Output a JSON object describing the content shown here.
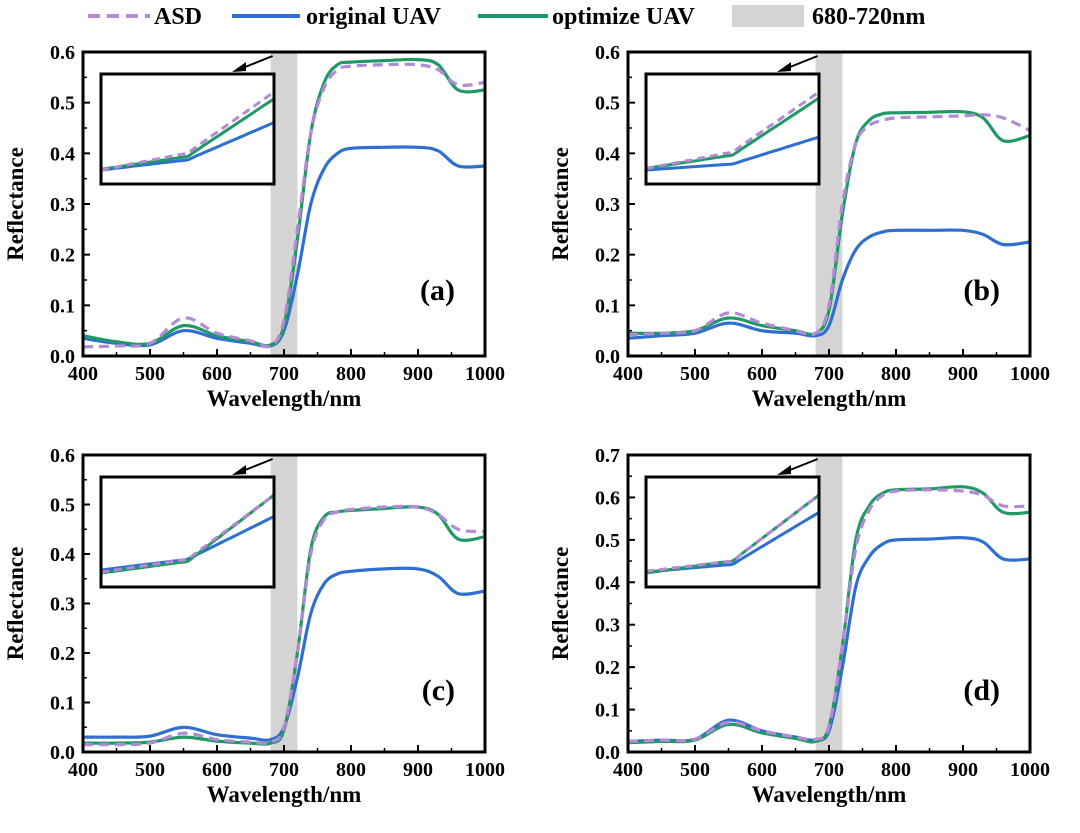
{
  "legend": {
    "asd": "ASD",
    "original": "original UAV",
    "optimize": "optimize UAV",
    "band": "680-720nm"
  },
  "colors": {
    "asd": "#b48ad6",
    "original": "#2e6fd0",
    "optimize": "#1f9a66",
    "band": "#d4d4d4"
  },
  "chart_data": [
    {
      "type": "line",
      "panel_label": "(a)",
      "xlabel": "Wavelength/nm",
      "ylabel": "Reflectance",
      "xlim": [
        400,
        1000
      ],
      "ylim": [
        0,
        0.6
      ],
      "xticks": [
        "400",
        "500",
        "600",
        "700",
        "800",
        "900",
        "1000"
      ],
      "yticks": [
        "0.0",
        "0.1",
        "0.2",
        "0.3",
        "0.4",
        "0.5",
        "0.6"
      ],
      "highlight_band": [
        680,
        720
      ],
      "x": [
        400,
        450,
        500,
        550,
        600,
        650,
        680,
        700,
        720,
        740,
        760,
        780,
        800,
        850,
        900,
        930,
        960,
        1000
      ],
      "series": [
        {
          "name": "ASD",
          "values": [
            0.018,
            0.02,
            0.025,
            0.075,
            0.045,
            0.03,
            0.02,
            0.07,
            0.25,
            0.44,
            0.53,
            0.565,
            0.572,
            0.575,
            0.575,
            0.565,
            0.535,
            0.54
          ]
        },
        {
          "name": "original UAV",
          "values": [
            0.035,
            0.025,
            0.022,
            0.05,
            0.035,
            0.025,
            0.02,
            0.05,
            0.16,
            0.3,
            0.37,
            0.4,
            0.41,
            0.412,
            0.412,
            0.405,
            0.375,
            0.375
          ]
        },
        {
          "name": "optimize UAV",
          "values": [
            0.04,
            0.028,
            0.025,
            0.06,
            0.04,
            0.028,
            0.022,
            0.06,
            0.23,
            0.44,
            0.54,
            0.575,
            0.58,
            0.583,
            0.585,
            0.575,
            0.525,
            0.525
          ]
        }
      ]
    },
    {
      "type": "line",
      "panel_label": "(b)",
      "xlabel": "Wavelength/nm",
      "ylabel": "Reflectance",
      "xlim": [
        400,
        1000
      ],
      "ylim": [
        0,
        0.6
      ],
      "xticks": [
        "400",
        "500",
        "600",
        "700",
        "800",
        "900",
        "1000"
      ],
      "yticks": [
        "0.0",
        "0.1",
        "0.2",
        "0.3",
        "0.4",
        "0.5",
        "0.6"
      ],
      "highlight_band": [
        680,
        720
      ],
      "x": [
        400,
        450,
        500,
        550,
        600,
        650,
        680,
        700,
        720,
        740,
        760,
        780,
        800,
        850,
        900,
        930,
        960,
        1000
      ],
      "series": [
        {
          "name": "ASD",
          "values": [
            0.042,
            0.045,
            0.05,
            0.085,
            0.065,
            0.05,
            0.045,
            0.1,
            0.3,
            0.42,
            0.455,
            0.465,
            0.47,
            0.472,
            0.474,
            0.476,
            0.47,
            0.445
          ]
        },
        {
          "name": "original UAV",
          "values": [
            0.035,
            0.04,
            0.045,
            0.065,
            0.05,
            0.045,
            0.04,
            0.06,
            0.15,
            0.21,
            0.235,
            0.245,
            0.248,
            0.248,
            0.248,
            0.24,
            0.22,
            0.225
          ]
        },
        {
          "name": "optimize UAV",
          "values": [
            0.045,
            0.045,
            0.05,
            0.075,
            0.06,
            0.05,
            0.045,
            0.09,
            0.28,
            0.42,
            0.465,
            0.478,
            0.48,
            0.481,
            0.482,
            0.47,
            0.425,
            0.435
          ]
        }
      ]
    },
    {
      "type": "line",
      "panel_label": "(c)",
      "xlabel": "Wavelength/nm",
      "ylabel": "Reflectance",
      "xlim": [
        400,
        1000
      ],
      "ylim": [
        0,
        0.6
      ],
      "xticks": [
        "400",
        "500",
        "600",
        "700",
        "800",
        "900",
        "1000"
      ],
      "yticks": [
        "0.0",
        "0.1",
        "0.2",
        "0.3",
        "0.4",
        "0.5",
        "0.6"
      ],
      "highlight_band": [
        680,
        720
      ],
      "x": [
        400,
        450,
        500,
        550,
        600,
        650,
        680,
        700,
        720,
        740,
        760,
        780,
        800,
        850,
        900,
        930,
        960,
        1000
      ],
      "series": [
        {
          "name": "ASD",
          "values": [
            0.015,
            0.015,
            0.018,
            0.038,
            0.025,
            0.02,
            0.02,
            0.05,
            0.2,
            0.4,
            0.47,
            0.485,
            0.49,
            0.495,
            0.495,
            0.48,
            0.45,
            0.445
          ]
        },
        {
          "name": "original UAV",
          "values": [
            0.03,
            0.03,
            0.032,
            0.05,
            0.035,
            0.028,
            0.025,
            0.05,
            0.15,
            0.28,
            0.34,
            0.36,
            0.365,
            0.37,
            0.37,
            0.355,
            0.32,
            0.325
          ]
        },
        {
          "name": "optimize UAV",
          "values": [
            0.018,
            0.018,
            0.02,
            0.03,
            0.022,
            0.018,
            0.018,
            0.045,
            0.2,
            0.41,
            0.475,
            0.485,
            0.488,
            0.492,
            0.495,
            0.48,
            0.43,
            0.435
          ]
        }
      ]
    },
    {
      "type": "line",
      "panel_label": "(d)",
      "xlabel": "Wavelength/nm",
      "ylabel": "Reflectance",
      "xlim": [
        400,
        1000
      ],
      "ylim": [
        0,
        0.7
      ],
      "xticks": [
        "400",
        "500",
        "600",
        "700",
        "800",
        "900",
        "1000"
      ],
      "yticks": [
        "0.0",
        "0.1",
        "0.2",
        "0.3",
        "0.4",
        "0.5",
        "0.6",
        "0.7"
      ],
      "highlight_band": [
        680,
        720
      ],
      "x": [
        400,
        450,
        500,
        550,
        600,
        650,
        680,
        700,
        720,
        740,
        760,
        780,
        800,
        850,
        900,
        930,
        960,
        1000
      ],
      "series": [
        {
          "name": "ASD",
          "values": [
            0.025,
            0.028,
            0.03,
            0.07,
            0.05,
            0.035,
            0.03,
            0.06,
            0.25,
            0.48,
            0.57,
            0.605,
            0.615,
            0.618,
            0.615,
            0.605,
            0.58,
            0.58
          ]
        },
        {
          "name": "original UAV",
          "values": [
            0.025,
            0.028,
            0.03,
            0.075,
            0.05,
            0.035,
            0.028,
            0.05,
            0.2,
            0.39,
            0.46,
            0.49,
            0.5,
            0.502,
            0.505,
            0.495,
            0.455,
            0.455
          ]
        },
        {
          "name": "optimize UAV",
          "values": [
            0.022,
            0.025,
            0.028,
            0.065,
            0.045,
            0.032,
            0.025,
            0.06,
            0.25,
            0.5,
            0.58,
            0.61,
            0.618,
            0.62,
            0.625,
            0.61,
            0.565,
            0.565
          ]
        }
      ]
    }
  ]
}
